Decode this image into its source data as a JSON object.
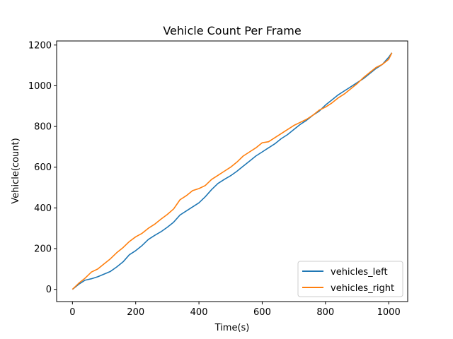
{
  "chart_data": {
    "type": "line",
    "title": "Vehicle Count Per Frame",
    "xlabel": "Time(s)",
    "ylabel": "Vehicle(count)",
    "xlim": [
      -50,
      1060
    ],
    "ylim": [
      -60,
      1220
    ],
    "xticks": [
      0,
      200,
      400,
      600,
      800,
      1000
    ],
    "yticks": [
      0,
      200,
      400,
      600,
      800,
      1000,
      1200
    ],
    "grid": false,
    "legend_position": "lower-right",
    "series": [
      {
        "name": "vehicles_left",
        "color": "#1f77b4",
        "x": [
          0,
          20,
          40,
          60,
          80,
          100,
          120,
          140,
          160,
          180,
          200,
          220,
          240,
          260,
          280,
          300,
          320,
          340,
          360,
          380,
          400,
          420,
          440,
          460,
          480,
          500,
          520,
          540,
          560,
          580,
          600,
          620,
          640,
          660,
          680,
          700,
          720,
          740,
          760,
          780,
          800,
          820,
          840,
          860,
          880,
          900,
          920,
          940,
          960,
          980,
          1000,
          1010
        ],
        "y": [
          0,
          25,
          45,
          52,
          62,
          75,
          88,
          110,
          135,
          170,
          190,
          215,
          245,
          265,
          283,
          305,
          330,
          365,
          385,
          405,
          425,
          455,
          490,
          520,
          540,
          558,
          580,
          605,
          630,
          655,
          675,
          695,
          715,
          740,
          760,
          785,
          810,
          830,
          855,
          875,
          905,
          930,
          955,
          975,
          995,
          1015,
          1035,
          1060,
          1085,
          1105,
          1140,
          1162
        ]
      },
      {
        "name": "vehicles_right",
        "color": "#ff7f0e",
        "x": [
          0,
          20,
          40,
          60,
          80,
          100,
          120,
          140,
          160,
          180,
          200,
          220,
          240,
          260,
          280,
          300,
          320,
          340,
          360,
          380,
          400,
          420,
          440,
          460,
          480,
          500,
          520,
          540,
          560,
          580,
          600,
          620,
          640,
          660,
          680,
          700,
          720,
          740,
          760,
          780,
          800,
          820,
          840,
          860,
          880,
          900,
          920,
          940,
          960,
          980,
          1000,
          1010
        ],
        "y": [
          0,
          30,
          55,
          85,
          100,
          125,
          150,
          180,
          205,
          235,
          258,
          275,
          300,
          320,
          345,
          368,
          395,
          440,
          460,
          485,
          495,
          510,
          540,
          560,
          580,
          600,
          625,
          655,
          675,
          695,
          720,
          725,
          745,
          765,
          785,
          805,
          820,
          835,
          855,
          880,
          895,
          915,
          940,
          960,
          985,
          1010,
          1040,
          1065,
          1090,
          1105,
          1130,
          1162
        ]
      }
    ]
  }
}
